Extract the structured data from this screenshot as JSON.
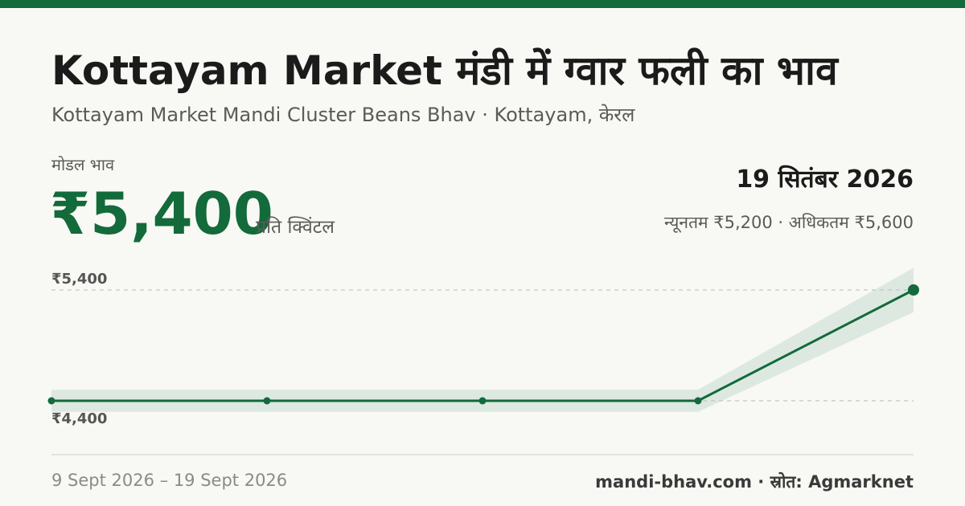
{
  "header": {
    "title": "Kottayam Market मंडी में ग्वार फली का भाव",
    "subtitle": "Kottayam Market Mandi Cluster Beans Bhav · Kottayam, केरल"
  },
  "price": {
    "label": "मोडल भाव",
    "value": "₹5,400",
    "unit": "प्रति क्विंटल"
  },
  "summary": {
    "date": "19 सितंबर 2026",
    "range": "न्यूनतम ₹5,200 · अधिकतम ₹5,600"
  },
  "chart_data": {
    "type": "line",
    "x": [
      "9 Sept 2026",
      "",
      "",
      "",
      "19 Sept 2026"
    ],
    "series": [
      {
        "values": [
          4400,
          4400,
          4400,
          4400,
          5400
        ]
      }
    ],
    "band": {
      "min": [
        4300,
        4300,
        4300,
        4300,
        5200
      ],
      "max": [
        4500,
        4500,
        4500,
        4500,
        5600
      ]
    },
    "y_ticks": [
      {
        "value": 5400,
        "label": "₹5,400"
      },
      {
        "value": 4400,
        "label": "₹4,400"
      }
    ],
    "ylim": [
      4200,
      5600
    ],
    "grid": "dashed at labelled ticks",
    "colors": {
      "line": "#136a3a",
      "band": "#dde8e1",
      "grid": "#c4c4c4"
    }
  },
  "footer": {
    "date_range": "9 Sept 2026 – 19 Sept 2026",
    "source": "mandi-bhav.com · स्रोत: Agmarknet"
  },
  "colors": {
    "accent": "#136a3a",
    "background": "#f8f9f4"
  }
}
